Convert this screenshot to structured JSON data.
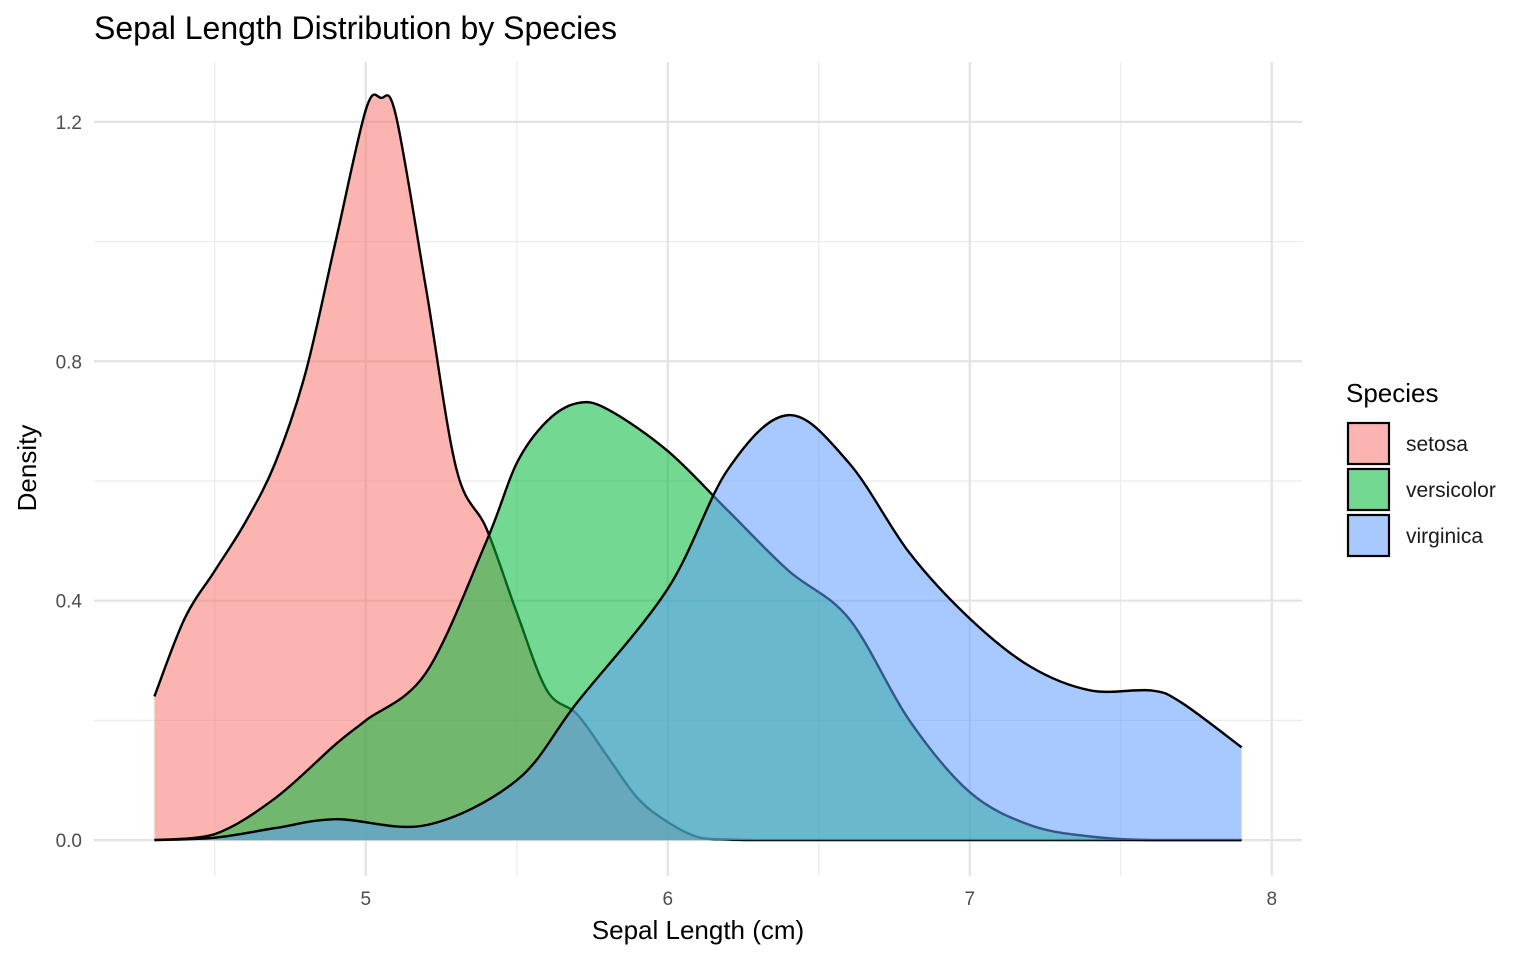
{
  "chart_data": {
    "type": "area",
    "subtype": "density",
    "title": "Sepal Length Distribution by Species",
    "xlabel": "Sepal Length (cm)",
    "ylabel": "Density",
    "xlim": [
      4.1,
      8.1
    ],
    "ylim": [
      -0.06,
      1.3
    ],
    "x_ticks": [
      5,
      6,
      7,
      8
    ],
    "x_tick_labels": [
      "5",
      "6",
      "7",
      "8"
    ],
    "x_minor_ticks": [
      4.5,
      5.5,
      6.5,
      7.5
    ],
    "y_ticks": [
      0.0,
      0.4,
      0.8,
      1.2
    ],
    "y_tick_labels": [
      "0.0",
      "0.4",
      "0.8",
      "1.2"
    ],
    "y_minor_ticks": [
      0.2,
      0.6,
      1.0
    ],
    "grid": true,
    "legend": {
      "title": "Species",
      "position": "right"
    },
    "series": [
      {
        "name": "setosa",
        "color": "#F8766D",
        "x": [
          4.3,
          4.4,
          4.5,
          4.6,
          4.7,
          4.8,
          4.9,
          5.0,
          5.05,
          5.1,
          5.2,
          5.3,
          5.4,
          5.5,
          5.6,
          5.7,
          5.8,
          5.9,
          6.0,
          6.1,
          6.2,
          6.3,
          6.5,
          7.0,
          7.5,
          7.9
        ],
        "values": [
          0.24,
          0.37,
          0.45,
          0.53,
          0.63,
          0.78,
          1.0,
          1.22,
          1.24,
          1.21,
          0.92,
          0.62,
          0.52,
          0.38,
          0.25,
          0.21,
          0.14,
          0.07,
          0.03,
          0.005,
          0.001,
          0.0,
          0.0,
          0.0,
          0.0,
          0.0
        ]
      },
      {
        "name": "versicolor",
        "color": "#00BA38",
        "x": [
          4.3,
          4.5,
          4.7,
          4.9,
          5.0,
          5.2,
          5.4,
          5.5,
          5.6,
          5.7,
          5.8,
          6.0,
          6.2,
          6.4,
          6.6,
          6.8,
          7.0,
          7.2,
          7.4,
          7.6,
          7.9
        ],
        "values": [
          0.0,
          0.01,
          0.07,
          0.16,
          0.2,
          0.28,
          0.5,
          0.63,
          0.7,
          0.73,
          0.72,
          0.65,
          0.55,
          0.45,
          0.37,
          0.2,
          0.08,
          0.025,
          0.006,
          0.0,
          0.0
        ]
      },
      {
        "name": "virginica",
        "color": "#619CFF",
        "x": [
          4.3,
          4.5,
          4.7,
          4.9,
          5.2,
          5.5,
          5.7,
          6.0,
          6.2,
          6.4,
          6.6,
          6.8,
          7.0,
          7.2,
          7.4,
          7.6,
          7.7,
          7.9
        ],
        "values": [
          0.0,
          0.004,
          0.02,
          0.035,
          0.025,
          0.1,
          0.23,
          0.42,
          0.62,
          0.71,
          0.63,
          0.48,
          0.37,
          0.29,
          0.25,
          0.25,
          0.23,
          0.155
        ]
      }
    ]
  }
}
